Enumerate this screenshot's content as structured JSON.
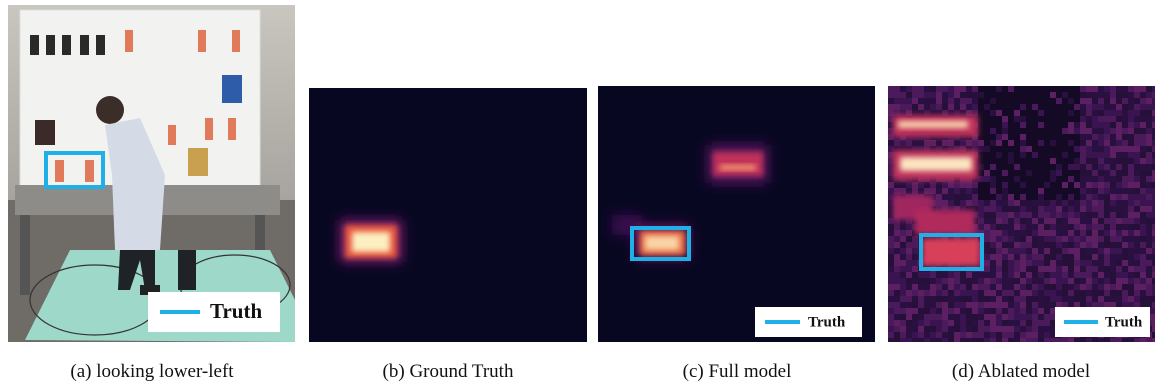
{
  "panels": [
    {
      "caption": "(a) looking lower-left",
      "legend": "Truth"
    },
    {
      "caption": "(b) Ground Truth"
    },
    {
      "caption": "(c) Full model",
      "legend": "Truth"
    },
    {
      "caption": "(d) Ablated model",
      "legend": "Truth"
    }
  ]
}
